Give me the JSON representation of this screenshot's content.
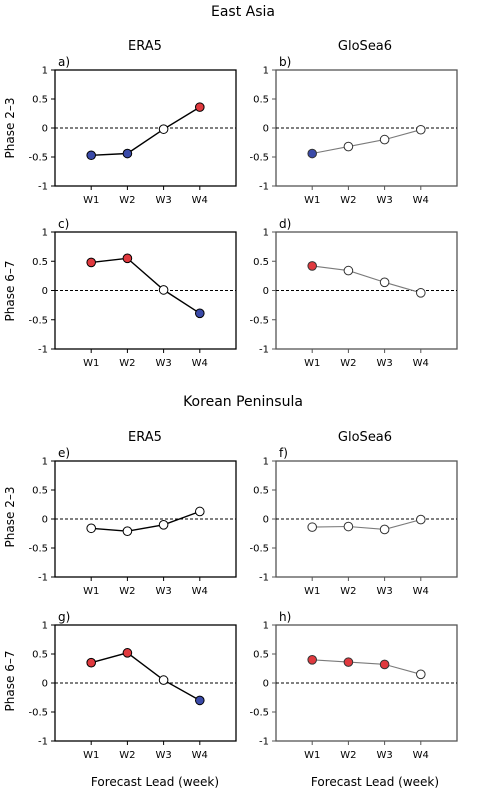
{
  "sections": [
    {
      "title": "East Asia"
    },
    {
      "title": "Korean Peninsula"
    }
  ],
  "columns": [
    "ERA5",
    "GloSea6"
  ],
  "rows": [
    "Phase 2–3",
    "Phase 6–7"
  ],
  "xlabel": "Forecast Lead (week)",
  "colors": {
    "positive": "#e0393e",
    "negative": "#3a4aa8",
    "neutral": "#ffffff",
    "era5_line": "#000000",
    "glosea6_line": "#7a7a7a"
  },
  "chart_data": [
    {
      "type": "line",
      "panel": "a)",
      "section": "East Asia",
      "column": "ERA5",
      "row": "Phase 2–3",
      "categories": [
        "W1",
        "W2",
        "W3",
        "W4"
      ],
      "values": [
        -0.47,
        -0.44,
        -0.02,
        0.36
      ],
      "marker_colors": [
        "blue",
        "blue",
        "white",
        "red"
      ],
      "ylim": [
        -1,
        1
      ],
      "yticks": [
        1,
        0.5,
        0,
        -0.5,
        -1
      ]
    },
    {
      "type": "line",
      "panel": "b)",
      "section": "East Asia",
      "column": "GloSea6",
      "row": "Phase 2–3",
      "categories": [
        "W1",
        "W2",
        "W3",
        "W4"
      ],
      "values": [
        -0.44,
        -0.32,
        -0.2,
        -0.03
      ],
      "marker_colors": [
        "blue",
        "white",
        "white",
        "white"
      ],
      "ylim": [
        -1,
        1
      ],
      "yticks": [
        1,
        0.5,
        0,
        -0.5,
        -1
      ]
    },
    {
      "type": "line",
      "panel": "c)",
      "section": "East Asia",
      "column": "ERA5",
      "row": "Phase 6–7",
      "categories": [
        "W1",
        "W2",
        "W3",
        "W4"
      ],
      "values": [
        0.48,
        0.55,
        0.01,
        -0.39
      ],
      "marker_colors": [
        "red",
        "red",
        "white",
        "blue"
      ],
      "ylim": [
        -1,
        1
      ],
      "yticks": [
        1,
        0.5,
        0,
        -0.5,
        -1
      ]
    },
    {
      "type": "line",
      "panel": "d)",
      "section": "East Asia",
      "column": "GloSea6",
      "row": "Phase 6–7",
      "categories": [
        "W1",
        "W2",
        "W3",
        "W4"
      ],
      "values": [
        0.42,
        0.34,
        0.14,
        -0.04
      ],
      "marker_colors": [
        "red",
        "white",
        "white",
        "white"
      ],
      "ylim": [
        -1,
        1
      ],
      "yticks": [
        1,
        0.5,
        0,
        -0.5,
        -1
      ]
    },
    {
      "type": "line",
      "panel": "e)",
      "section": "Korean Peninsula",
      "column": "ERA5",
      "row": "Phase 2–3",
      "categories": [
        "W1",
        "W2",
        "W3",
        "W4"
      ],
      "values": [
        -0.16,
        -0.21,
        -0.1,
        0.13
      ],
      "marker_colors": [
        "white",
        "white",
        "white",
        "white"
      ],
      "ylim": [
        -1,
        1
      ],
      "yticks": [
        1,
        0.5,
        0,
        -0.5,
        -1
      ]
    },
    {
      "type": "line",
      "panel": "f)",
      "section": "Korean Peninsula",
      "column": "GloSea6",
      "row": "Phase 2–3",
      "categories": [
        "W1",
        "W2",
        "W3",
        "W4"
      ],
      "values": [
        -0.14,
        -0.13,
        -0.18,
        -0.01
      ],
      "marker_colors": [
        "white",
        "white",
        "white",
        "white"
      ],
      "ylim": [
        -1,
        1
      ],
      "yticks": [
        1,
        0.5,
        0,
        -0.5,
        -1
      ]
    },
    {
      "type": "line",
      "panel": "g)",
      "section": "Korean Peninsula",
      "column": "ERA5",
      "row": "Phase 6–7",
      "categories": [
        "W1",
        "W2",
        "W3",
        "W4"
      ],
      "values": [
        0.35,
        0.52,
        0.05,
        -0.3
      ],
      "marker_colors": [
        "red",
        "red",
        "white",
        "blue"
      ],
      "ylim": [
        -1,
        1
      ],
      "yticks": [
        1,
        0.5,
        0,
        -0.5,
        -1
      ]
    },
    {
      "type": "line",
      "panel": "h)",
      "section": "Korean Peninsula",
      "column": "GloSea6",
      "row": "Phase 6–7",
      "categories": [
        "W1",
        "W2",
        "W3",
        "W4"
      ],
      "values": [
        0.4,
        0.36,
        0.32,
        0.15
      ],
      "marker_colors": [
        "red",
        "red",
        "red",
        "white"
      ],
      "ylim": [
        -1,
        1
      ],
      "yticks": [
        1,
        0.5,
        0,
        -0.5,
        -1
      ]
    }
  ]
}
